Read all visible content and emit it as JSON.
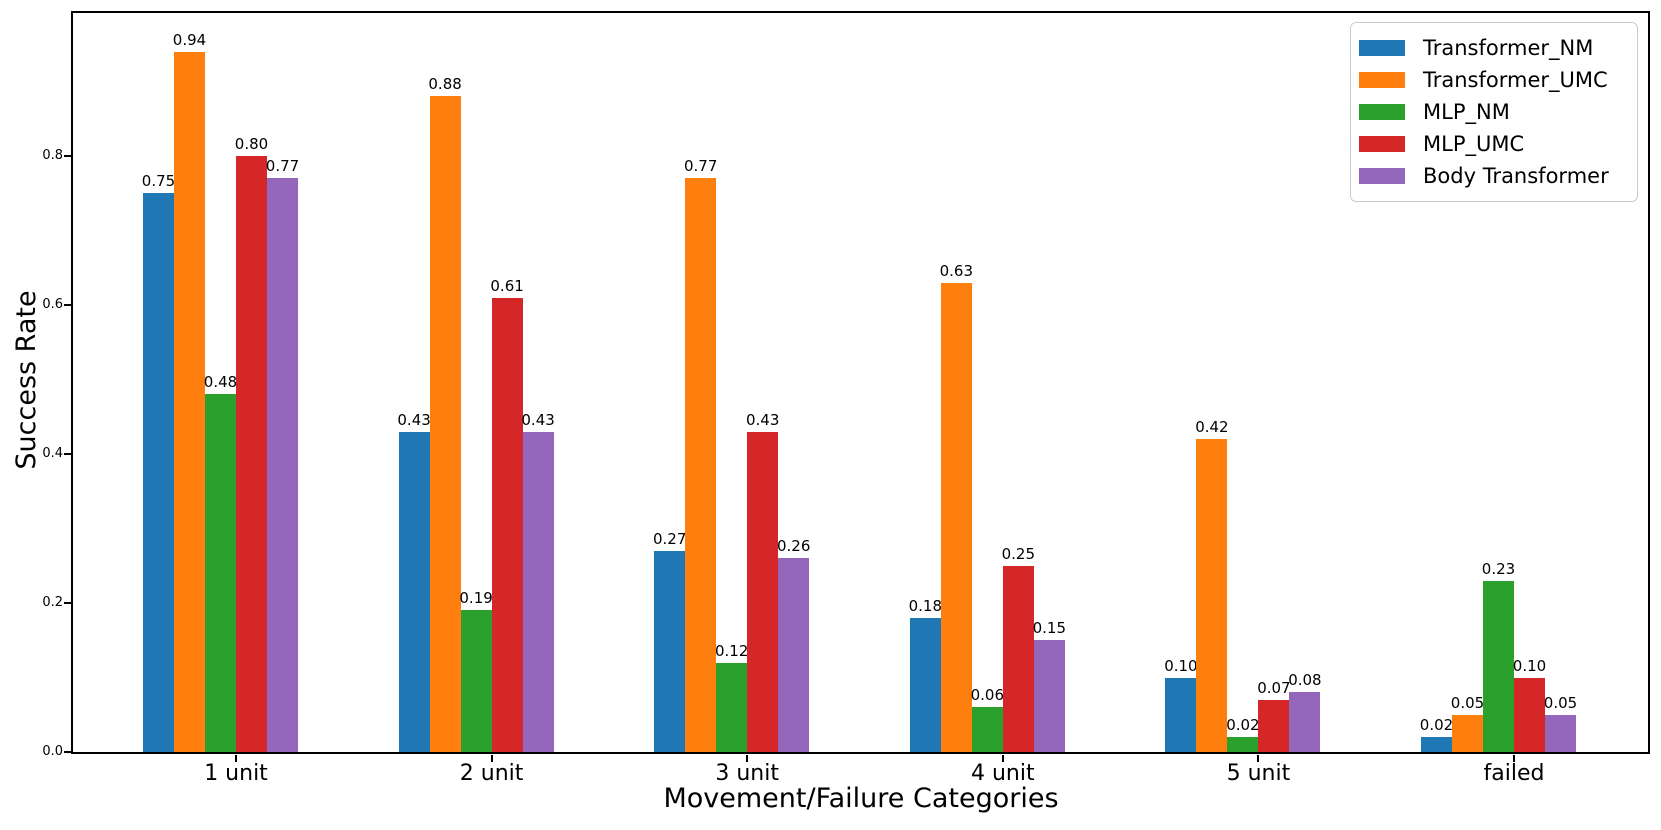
{
  "chart_data": {
    "type": "bar",
    "title": "",
    "xlabel": "Movement/Failure Categories",
    "ylabel": "Success Rate",
    "categories": [
      "1 unit",
      "2 unit",
      "3 unit",
      "4 unit",
      "5 unit",
      "failed"
    ],
    "series": [
      {
        "name": "Transformer_NM",
        "color": "#1f77b4",
        "values": [
          0.75,
          0.43,
          0.27,
          0.18,
          0.1,
          0.02
        ],
        "value_labels": [
          "0.75",
          "0.43",
          "0.27",
          "0.18",
          "0.10",
          "0.02"
        ]
      },
      {
        "name": "Transformer_UMC",
        "color": "#ff7f0e",
        "values": [
          0.94,
          0.88,
          0.77,
          0.63,
          0.42,
          0.05
        ],
        "value_labels": [
          "0.94",
          "0.88",
          "0.77",
          "0.63",
          "0.42",
          "0.05"
        ]
      },
      {
        "name": "MLP_NM",
        "color": "#2ca02c",
        "values": [
          0.48,
          0.19,
          0.12,
          0.06,
          0.02,
          0.23
        ],
        "value_labels": [
          "0.48",
          "0.19",
          "0.12",
          "0.06",
          "0.02",
          "0.23"
        ]
      },
      {
        "name": "MLP_UMC",
        "color": "#d62728",
        "values": [
          0.8,
          0.61,
          0.43,
          0.25,
          0.07,
          0.1
        ],
        "value_labels": [
          "0.80",
          "0.61",
          "0.43",
          "0.25",
          "0.07",
          "0.10"
        ]
      },
      {
        "name": "Body Transformer",
        "color": "#9467bd",
        "values": [
          0.77,
          0.43,
          0.26,
          0.15,
          0.08,
          0.05
        ],
        "value_labels": [
          "0.77",
          "0.43",
          "0.26",
          "0.15",
          "0.08",
          "0.05"
        ]
      }
    ],
    "yticks": [
      0.0,
      0.2,
      0.4,
      0.6,
      0.8
    ],
    "ytick_labels": [
      "0.0",
      "0.2",
      "0.4",
      "0.6",
      "0.8"
    ],
    "ylim": [
      0.0,
      1.0
    ],
    "grid": false,
    "legend_position": "upper right",
    "axis_color": "#000000",
    "background": "#ffffff"
  }
}
